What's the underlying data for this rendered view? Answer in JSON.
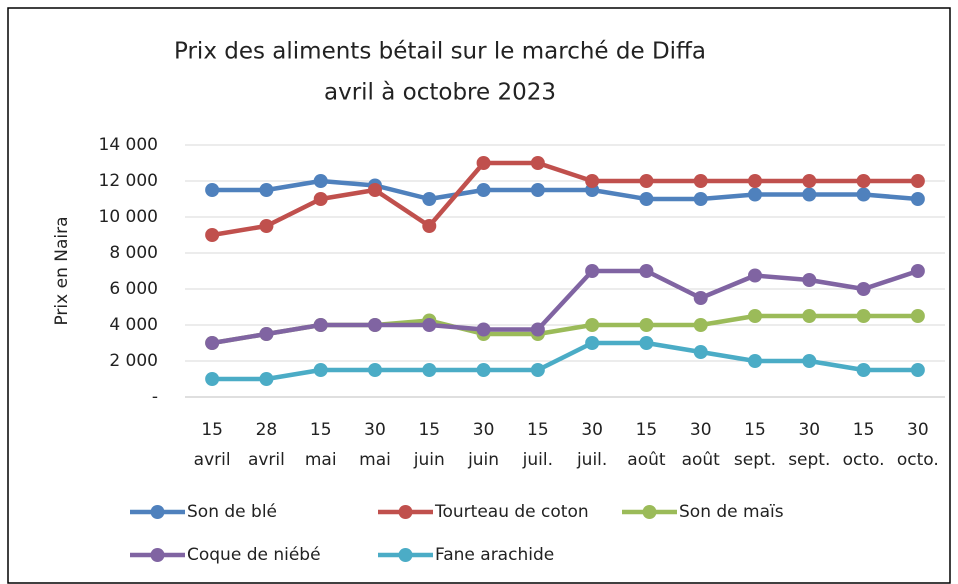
{
  "chart_data": {
    "type": "line",
    "title": "Prix des aliments bétail sur le marché de Diffa",
    "subtitle": "avril à octobre 2023",
    "y_label": "Prix en Naira",
    "categories": [
      "15 avril",
      "28 avril",
      "15 mai",
      "30 mai",
      "15 juin",
      "30 juin",
      "15 juil.",
      "30 juil.",
      "15 août",
      "30 août",
      "15 sept.",
      "30 sept.",
      "15 octo.",
      "30 octo."
    ],
    "series": [
      {
        "name": "Son de blé",
        "color": "#4f81bd",
        "values": [
          11500,
          11500,
          12000,
          11750,
          11000,
          11500,
          11500,
          11500,
          11000,
          11000,
          11250,
          11250,
          11250,
          11000
        ]
      },
      {
        "name": "Tourteau de coton",
        "color": "#c0504d",
        "values": [
          9000,
          9500,
          11000,
          11500,
          9500,
          13000,
          13000,
          12000,
          12000,
          12000,
          12000,
          12000,
          12000,
          12000
        ]
      },
      {
        "name": "Son de maïs",
        "color": "#9bbb59",
        "values": [
          3000,
          3500,
          4000,
          4000,
          4250,
          3500,
          3500,
          4000,
          4000,
          4000,
          4500,
          4500,
          4500,
          4500
        ]
      },
      {
        "name": "Coque de niébé",
        "color": "#8064a2",
        "values": [
          3000,
          3500,
          4000,
          4000,
          4000,
          3750,
          3750,
          7000,
          7000,
          5500,
          6750,
          6500,
          6000,
          7000
        ]
      },
      {
        "name": "Fane arachide",
        "color": "#4bacc6",
        "values": [
          1000,
          1000,
          1500,
          1500,
          1500,
          1500,
          1500,
          3000,
          3000,
          2500,
          2000,
          2000,
          1500,
          1500
        ]
      }
    ],
    "ylim": [
      0,
      14000
    ],
    "yticks": [
      {
        "value": 0,
        "label": "-"
      },
      {
        "value": 2000,
        "label": "2 000"
      },
      {
        "value": 4000,
        "label": "4 000"
      },
      {
        "value": 6000,
        "label": "6 000"
      },
      {
        "value": 8000,
        "label": "8 000"
      },
      {
        "value": 10000,
        "label": "10 000"
      },
      {
        "value": 12000,
        "label": "12 000"
      },
      {
        "value": 14000,
        "label": "14 000"
      }
    ],
    "grid": true
  }
}
